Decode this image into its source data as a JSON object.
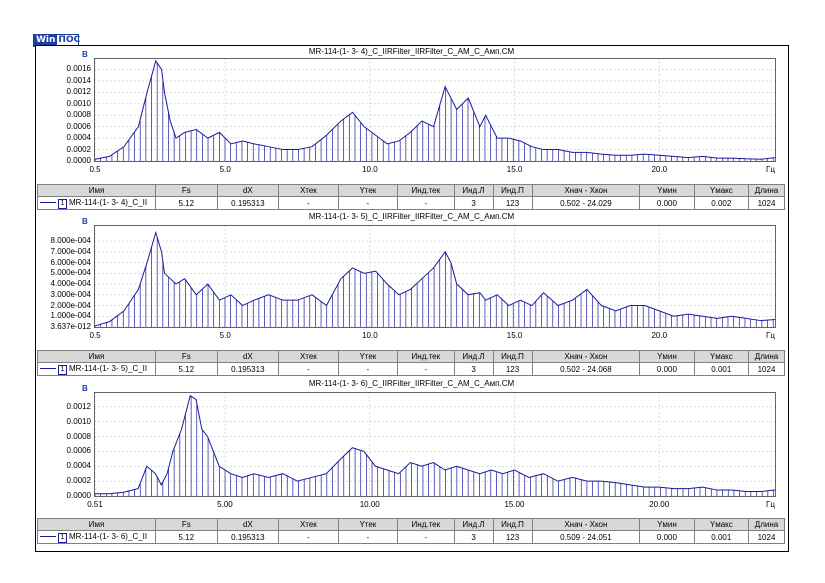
{
  "logo": {
    "part1": "Win",
    "part2": "ПОС"
  },
  "columns": [
    "Имя",
    "Fs",
    "dX",
    "Xтек",
    "Yтек",
    "Инд.тек",
    "Инд.Л",
    "Инд.П",
    "Хнач - Хкон",
    "Yмин",
    "Yмакс",
    "Длина"
  ],
  "colors": {
    "series": "#1a1aa0",
    "axis_unit": "#1a3fa0",
    "grid": "#c8c8c8"
  },
  "chart_data": [
    {
      "type": "line",
      "title": "MR-114-(1- 3- 4)_C_IIRFilter_IIRFilter_C_AM_C_Амп.CM",
      "ylabel": "В",
      "xlabel": "Гц",
      "xlim": [
        0.5,
        24.0
      ],
      "ylim": [
        0,
        0.0018
      ],
      "yticks": [
        "0.0000",
        "0.0002",
        "0.0004",
        "0.0006",
        "0.0008",
        "0.0010",
        "0.0012",
        "0.0014",
        "0.0016"
      ],
      "xticks": [
        "0.5",
        "5.0",
        "10.0",
        "15.0",
        "20.0"
      ],
      "xtick_values": [
        0.5,
        5.0,
        10.0,
        15.0,
        20.0
      ],
      "grid": true,
      "x": [
        0.5,
        1.0,
        1.5,
        2.0,
        2.3,
        2.6,
        2.8,
        2.9,
        3.1,
        3.3,
        3.6,
        4.0,
        4.4,
        4.8,
        5.2,
        5.6,
        6.0,
        6.5,
        7.0,
        7.5,
        8.0,
        8.5,
        9.0,
        9.4,
        9.8,
        10.2,
        10.6,
        11.0,
        11.4,
        11.8,
        12.2,
        12.6,
        12.8,
        13.0,
        13.4,
        13.8,
        14.0,
        14.4,
        14.8,
        15.2,
        15.6,
        16.0,
        16.5,
        17.0,
        17.5,
        18.0,
        18.5,
        19.0,
        19.5,
        20.0,
        20.5,
        21.0,
        21.5,
        22.0,
        22.5,
        23.0,
        23.5,
        24.0
      ],
      "y": [
        3e-05,
        8e-05,
        0.00025,
        0.0006,
        0.0012,
        0.00175,
        0.0016,
        0.0012,
        0.0007,
        0.0004,
        0.0005,
        0.00055,
        0.0004,
        0.0005,
        0.0003,
        0.00035,
        0.0003,
        0.00025,
        0.0002,
        0.0002,
        0.00025,
        0.00045,
        0.0007,
        0.00085,
        0.0006,
        0.00045,
        0.0003,
        0.00035,
        0.0005,
        0.0007,
        0.0006,
        0.0013,
        0.0011,
        0.0009,
        0.0011,
        0.0006,
        0.0008,
        0.0004,
        0.0004,
        0.00035,
        0.00025,
        0.0002,
        0.0002,
        0.00015,
        0.00015,
        0.00012,
        0.0001,
        0.0001,
        0.00012,
        0.0001,
        8e-05,
        6e-05,
        8e-05,
        5e-05,
        5e-05,
        4e-05,
        3e-05,
        6e-05
      ],
      "info": {
        "name": "MR-114-(1- 3- 4)_C_II",
        "fs": "5.12",
        "dx": "0.195313",
        "xcur": "-",
        "ycur": "-",
        "indcur": "-",
        "indl": "3",
        "indr": "123",
        "range": "0.502 - 24.029",
        "ymin": "0.000",
        "ymax": "0.002",
        "len": "1024"
      }
    },
    {
      "type": "line",
      "title": "MR-114-(1- 3- 5)_C_IIRFilter_IIRFilter_C_AM_C_Амп.CM",
      "ylabel": "В",
      "xlabel": "Гц",
      "xlim": [
        0.5,
        24.0
      ],
      "ylim": [
        0,
        0.00095
      ],
      "yticks": [
        "3.637e-012",
        "1.000e-004",
        "2.000e-004",
        "3.000e-004",
        "4.000e-004",
        "5.000e-004",
        "6.000e-004",
        "7.000e-004",
        "8.000e-004"
      ],
      "xticks": [
        "0.5",
        "5.0",
        "10.0",
        "15.0",
        "20.0"
      ],
      "xtick_values": [
        0.5,
        5.0,
        10.0,
        15.0,
        20.0
      ],
      "grid": true,
      "x": [
        0.5,
        1.0,
        1.5,
        2.0,
        2.3,
        2.6,
        2.8,
        2.9,
        3.1,
        3.3,
        3.6,
        4.0,
        4.4,
        4.8,
        5.2,
        5.6,
        6.0,
        6.5,
        7.0,
        7.5,
        8.0,
        8.5,
        9.0,
        9.4,
        9.8,
        10.2,
        10.6,
        11.0,
        11.4,
        11.8,
        12.2,
        12.6,
        12.8,
        13.0,
        13.4,
        13.8,
        14.0,
        14.4,
        14.8,
        15.2,
        15.6,
        16.0,
        16.5,
        17.0,
        17.5,
        18.0,
        18.5,
        19.0,
        19.5,
        20.0,
        20.5,
        21.0,
        21.5,
        22.0,
        22.5,
        23.0,
        23.5,
        24.0
      ],
      "y": [
        1e-05,
        5e-05,
        0.00015,
        0.00035,
        0.0006,
        0.00088,
        0.0007,
        0.0005,
        0.00045,
        0.0004,
        0.00045,
        0.0003,
        0.0004,
        0.00025,
        0.0003,
        0.0002,
        0.00025,
        0.0003,
        0.00025,
        0.00025,
        0.0003,
        0.0002,
        0.00045,
        0.00055,
        0.0005,
        0.00052,
        0.0004,
        0.0003,
        0.00035,
        0.00045,
        0.00055,
        0.0007,
        0.0006,
        0.0004,
        0.0003,
        0.00032,
        0.00025,
        0.0003,
        0.0002,
        0.00025,
        0.0002,
        0.00032,
        0.0002,
        0.00025,
        0.00035,
        0.0002,
        0.00015,
        0.0002,
        0.0002,
        0.00015,
        0.0001,
        0.00012,
        0.0001,
        8e-05,
        0.0001,
        8e-05,
        6e-05,
        7e-05
      ],
      "info": {
        "name": "MR-114-(1- 3- 5)_C_II",
        "fs": "5.12",
        "dx": "0.195313",
        "xcur": "-",
        "ycur": "-",
        "indcur": "-",
        "indl": "3",
        "indr": "123",
        "range": "0.502 - 24.068",
        "ymin": "0.000",
        "ymax": "0.001",
        "len": "1024"
      }
    },
    {
      "type": "line",
      "title": "MR-114-(1- 3- 6)_C_IIRFilter_IIRFilter_C_AM_C_Амп.CM",
      "ylabel": "В",
      "xlabel": "Гц",
      "xlim": [
        0.51,
        24.0
      ],
      "ylim": [
        0,
        0.0014
      ],
      "yticks": [
        "0.0000",
        "0.0002",
        "0.0004",
        "0.0006",
        "0.0008",
        "0.0010",
        "0.0012"
      ],
      "xticks": [
        "0.51",
        "5.00",
        "10.00",
        "15.00",
        "20.00"
      ],
      "xtick_values": [
        0.51,
        5.0,
        10.0,
        15.0,
        20.0
      ],
      "grid": true,
      "x": [
        0.51,
        1.0,
        1.5,
        2.0,
        2.3,
        2.6,
        2.8,
        3.0,
        3.2,
        3.5,
        3.8,
        4.0,
        4.2,
        4.4,
        4.6,
        4.8,
        5.2,
        5.6,
        6.0,
        6.5,
        7.0,
        7.5,
        8.0,
        8.5,
        9.0,
        9.4,
        9.8,
        10.2,
        10.6,
        11.0,
        11.4,
        11.8,
        12.2,
        12.6,
        13.0,
        13.4,
        13.8,
        14.2,
        14.6,
        15.0,
        15.5,
        16.0,
        16.5,
        17.0,
        17.5,
        18.0,
        18.5,
        19.0,
        19.5,
        20.0,
        20.5,
        21.0,
        21.5,
        22.0,
        22.5,
        23.0,
        23.5,
        24.0
      ],
      "y": [
        3e-05,
        3e-05,
        5e-05,
        0.0001,
        0.0004,
        0.0003,
        0.00015,
        0.0003,
        0.0006,
        0.0009,
        0.00135,
        0.0013,
        0.0009,
        0.0008,
        0.0006,
        0.0004,
        0.0003,
        0.00025,
        0.0003,
        0.00025,
        0.0003,
        0.0002,
        0.00025,
        0.0003,
        0.0005,
        0.00065,
        0.0006,
        0.0004,
        0.00035,
        0.0003,
        0.00045,
        0.0004,
        0.00045,
        0.00035,
        0.0004,
        0.00035,
        0.0003,
        0.00035,
        0.0003,
        0.00035,
        0.00025,
        0.0003,
        0.0002,
        0.00025,
        0.0002,
        0.0002,
        0.00018,
        0.00015,
        0.00012,
        0.00012,
        0.0001,
        0.0001,
        0.00012,
        8e-05,
        8e-05,
        6e-05,
        6e-05,
        8e-05
      ],
      "info": {
        "name": "MR-114-(1- 3- 6)_C_II",
        "fs": "5.12",
        "dx": "0.195313",
        "xcur": "-",
        "ycur": "-",
        "indcur": "-",
        "indl": "3",
        "indr": "123",
        "range": "0.509 - 24.051",
        "ymin": "0.000",
        "ymax": "0.001",
        "len": "1024"
      }
    }
  ]
}
